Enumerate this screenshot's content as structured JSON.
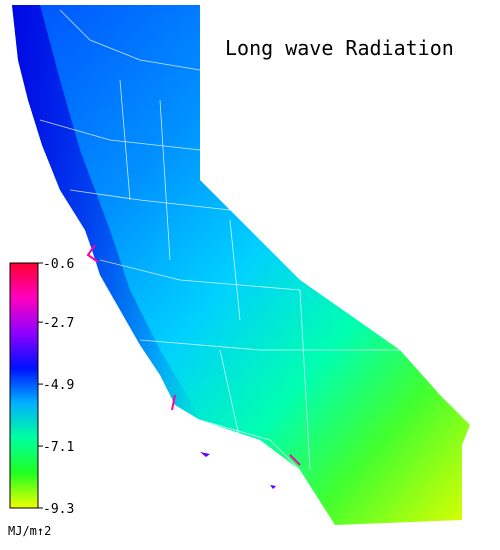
{
  "map": {
    "title": "Long wave Radiation",
    "colorbar": {
      "lim": [
        -9.3,
        -0.6
      ],
      "ticks": [
        -0.6,
        -2.7,
        -4.9,
        -7.1,
        -9.3
      ],
      "unit": "MJ/m↑2",
      "colors": [
        "#ff0030",
        "#ff00c0",
        "#9000ff",
        "#0010ff",
        "#00b0ff",
        "#00ffa0",
        "#20ff20",
        "#f0ff00"
      ]
    }
  }
}
